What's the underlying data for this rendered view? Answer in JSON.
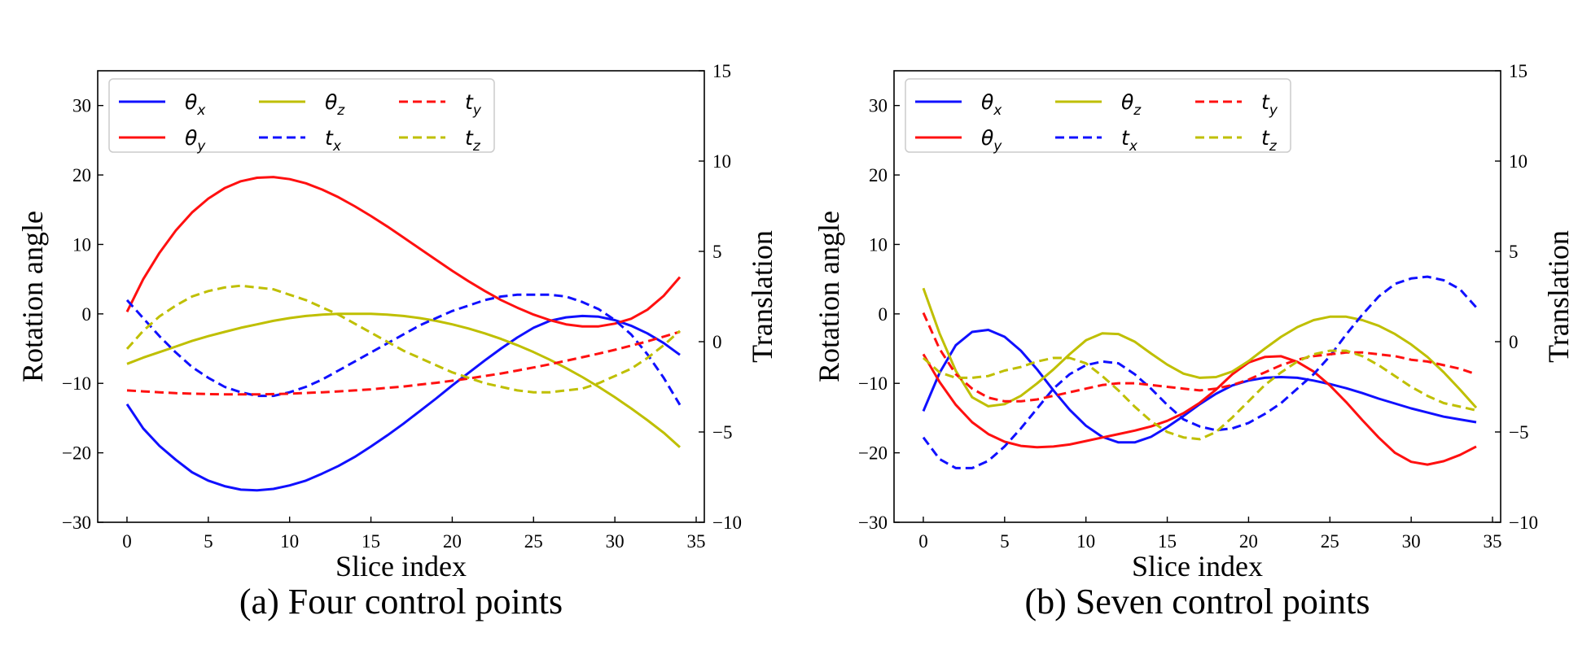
{
  "figure": {
    "series_styles": [
      {
        "key": "theta_x",
        "symbol": "θ",
        "sub": "x",
        "color": "#1010ff",
        "dashed": false
      },
      {
        "key": "theta_y",
        "symbol": "θ",
        "sub": "y",
        "color": "#ff1010",
        "dashed": false
      },
      {
        "key": "theta_z",
        "symbol": "θ",
        "sub": "z",
        "color": "#bfbf00",
        "dashed": false
      },
      {
        "key": "t_x",
        "symbol": "t",
        "sub": "x",
        "color": "#1010ff",
        "dashed": true
      },
      {
        "key": "t_y",
        "symbol": "t",
        "sub": "y",
        "color": "#ff1010",
        "dashed": true
      },
      {
        "key": "t_z",
        "symbol": "t",
        "sub": "z",
        "color": "#bfbf00",
        "dashed": true
      }
    ]
  },
  "chart_data": [
    {
      "type": "line",
      "caption": "(a) Four control points",
      "xlabel": "Slice index",
      "ylabel": "Rotation angle",
      "y2label": "Translation",
      "xlim": [
        -1.8,
        35.5
      ],
      "ylim": [
        -30,
        35
      ],
      "y2lim": [
        -10,
        15
      ],
      "xticks": [
        0,
        5,
        10,
        15,
        20,
        25,
        30,
        35
      ],
      "yticks": [
        -30,
        -20,
        -10,
        0,
        10,
        20,
        30
      ],
      "y2ticks": [
        -10,
        -5,
        0,
        5,
        10,
        15
      ],
      "yticklabels": [
        "−30",
        "−20",
        "−10",
        "0",
        "10",
        "20",
        "30"
      ],
      "y2ticklabels": [
        "−10",
        "−5",
        "0",
        "5",
        "10",
        "15"
      ],
      "legend_location": "upper-left",
      "series": [
        {
          "key": "theta_x",
          "axis": "left",
          "x": [
            0,
            1,
            2,
            3,
            4,
            5,
            6,
            7,
            8,
            9,
            10,
            11,
            12,
            13,
            14,
            15,
            16,
            17,
            18,
            19,
            20,
            21,
            22,
            23,
            24,
            25,
            26,
            27,
            28,
            29,
            30,
            31,
            32,
            33,
            34
          ],
          "values": [
            -13,
            -16.5,
            -19,
            -21,
            -22.8,
            -24,
            -24.8,
            -25.3,
            -25.4,
            -25.2,
            -24.7,
            -24,
            -23,
            -21.9,
            -20.6,
            -19.1,
            -17.5,
            -15.8,
            -14,
            -12.2,
            -10.3,
            -8.5,
            -6.7,
            -5,
            -3.4,
            -2,
            -1,
            -0.5,
            -0.3,
            -0.4,
            -0.9,
            -1.7,
            -2.8,
            -4.2,
            -5.9
          ]
        },
        {
          "key": "theta_y",
          "axis": "left",
          "x": [
            0,
            1,
            2,
            3,
            4,
            5,
            6,
            7,
            8,
            9,
            10,
            11,
            12,
            13,
            14,
            15,
            16,
            17,
            18,
            19,
            20,
            21,
            22,
            23,
            24,
            25,
            26,
            27,
            28,
            29,
            30,
            31,
            32,
            33,
            34
          ],
          "values": [
            0.3,
            5,
            8.8,
            12,
            14.6,
            16.6,
            18.1,
            19.1,
            19.6,
            19.7,
            19.4,
            18.8,
            17.9,
            16.8,
            15.5,
            14.1,
            12.6,
            11,
            9.4,
            7.8,
            6.2,
            4.7,
            3.3,
            2,
            0.9,
            -0.1,
            -0.9,
            -1.5,
            -1.8,
            -1.8,
            -1.4,
            -0.7,
            0.6,
            2.6,
            5.3
          ]
        },
        {
          "key": "theta_z",
          "axis": "left",
          "x": [
            0,
            1,
            2,
            3,
            4,
            5,
            6,
            7,
            8,
            9,
            10,
            11,
            12,
            13,
            14,
            15,
            16,
            17,
            18,
            19,
            20,
            21,
            22,
            23,
            24,
            25,
            26,
            27,
            28,
            29,
            30,
            31,
            32,
            33,
            34
          ],
          "values": [
            -7.2,
            -6.3,
            -5.5,
            -4.7,
            -3.9,
            -3.2,
            -2.6,
            -2,
            -1.5,
            -1,
            -0.6,
            -0.3,
            -0.1,
            0,
            0,
            0,
            -0.1,
            -0.3,
            -0.6,
            -1,
            -1.5,
            -2.1,
            -2.8,
            -3.6,
            -4.5,
            -5.5,
            -6.6,
            -7.8,
            -9.1,
            -10.5,
            -12,
            -13.6,
            -15.3,
            -17.1,
            -19.2
          ]
        },
        {
          "key": "t_x",
          "axis": "right",
          "x": [
            0,
            1,
            2,
            3,
            4,
            5,
            6,
            7,
            8,
            9,
            10,
            11,
            12,
            13,
            14,
            15,
            16,
            17,
            18,
            19,
            20,
            21,
            22,
            23,
            24,
            25,
            26,
            27,
            28,
            29,
            30,
            31,
            32,
            33,
            34
          ],
          "values": [
            2.3,
            1.3,
            0.3,
            -0.6,
            -1.4,
            -2,
            -2.5,
            -2.8,
            -3,
            -3,
            -2.8,
            -2.5,
            -2.1,
            -1.6,
            -1.1,
            -0.6,
            -0.1,
            0.4,
            0.9,
            1.3,
            1.7,
            2,
            2.3,
            2.5,
            2.6,
            2.6,
            2.6,
            2.5,
            2.2,
            1.8,
            1.2,
            0.4,
            -0.7,
            -2,
            -3.5
          ]
        },
        {
          "key": "t_y",
          "axis": "right",
          "x": [
            0,
            1,
            2,
            3,
            4,
            5,
            6,
            7,
            8,
            9,
            10,
            11,
            12,
            13,
            14,
            15,
            16,
            17,
            18,
            19,
            20,
            21,
            22,
            23,
            24,
            25,
            26,
            27,
            28,
            29,
            30,
            31,
            32,
            33,
            34
          ],
          "values": [
            -2.7,
            -2.75,
            -2.8,
            -2.85,
            -2.88,
            -2.9,
            -2.92,
            -2.92,
            -2.92,
            -2.9,
            -2.88,
            -2.84,
            -2.8,
            -2.75,
            -2.7,
            -2.64,
            -2.56,
            -2.48,
            -2.38,
            -2.28,
            -2.16,
            -2.04,
            -1.9,
            -1.76,
            -1.6,
            -1.43,
            -1.25,
            -1.06,
            -0.86,
            -0.66,
            -0.45,
            -0.22,
            0.02,
            0.28,
            0.55
          ]
        },
        {
          "key": "t_z",
          "axis": "right",
          "x": [
            0,
            1,
            2,
            3,
            4,
            5,
            6,
            7,
            8,
            9,
            10,
            11,
            12,
            13,
            14,
            15,
            16,
            17,
            18,
            19,
            20,
            21,
            22,
            23,
            24,
            25,
            26,
            27,
            28,
            29,
            30,
            31,
            32,
            33,
            34
          ],
          "values": [
            -0.4,
            0.6,
            1.4,
            2,
            2.5,
            2.8,
            3,
            3.1,
            3,
            2.9,
            2.6,
            2.3,
            1.9,
            1.5,
            1,
            0.5,
            0,
            -0.5,
            -0.9,
            -1.3,
            -1.7,
            -2,
            -2.3,
            -2.5,
            -2.7,
            -2.8,
            -2.8,
            -2.7,
            -2.6,
            -2.3,
            -1.9,
            -1.5,
            -0.9,
            -0.2,
            0.6
          ]
        }
      ]
    },
    {
      "type": "line",
      "caption": "(b) Seven control points",
      "xlabel": "Slice index",
      "ylabel": "Rotation angle",
      "y2label": "Translation",
      "xlim": [
        -1.8,
        35.5
      ],
      "ylim": [
        -30,
        35
      ],
      "y2lim": [
        -10,
        15
      ],
      "xticks": [
        0,
        5,
        10,
        15,
        20,
        25,
        30,
        35
      ],
      "yticks": [
        -30,
        -20,
        -10,
        0,
        10,
        20,
        30
      ],
      "y2ticks": [
        -10,
        -5,
        0,
        5,
        10,
        15
      ],
      "yticklabels": [
        "−30",
        "−20",
        "−10",
        "0",
        "10",
        "20",
        "30"
      ],
      "y2ticklabels": [
        "−10",
        "−5",
        "0",
        "5",
        "10",
        "15"
      ],
      "legend_location": "upper-left",
      "series": [
        {
          "key": "theta_x",
          "axis": "left",
          "x": [
            0,
            1,
            2,
            3,
            4,
            5,
            6,
            7,
            8,
            9,
            10,
            11,
            12,
            13,
            14,
            15,
            16,
            17,
            18,
            19,
            20,
            21,
            22,
            23,
            24,
            25,
            26,
            27,
            28,
            29,
            30,
            31,
            32,
            33,
            34
          ],
          "values": [
            -14,
            -8.5,
            -4.5,
            -2.6,
            -2.3,
            -3.3,
            -5.3,
            -8,
            -11,
            -13.8,
            -16.1,
            -17.7,
            -18.5,
            -18.5,
            -17.7,
            -16.3,
            -14.7,
            -13,
            -11.5,
            -10.3,
            -9.6,
            -9.2,
            -9.1,
            -9.2,
            -9.6,
            -10.1,
            -10.7,
            -11.4,
            -12.2,
            -12.9,
            -13.6,
            -14.2,
            -14.8,
            -15.2,
            -15.6
          ]
        },
        {
          "key": "theta_y",
          "axis": "left",
          "x": [
            0,
            1,
            2,
            3,
            4,
            5,
            6,
            7,
            8,
            9,
            10,
            11,
            12,
            13,
            14,
            15,
            16,
            17,
            18,
            19,
            20,
            21,
            22,
            23,
            24,
            25,
            26,
            27,
            28,
            29,
            30,
            31,
            32,
            33,
            34
          ],
          "values": [
            -5.8,
            -9.8,
            -13.1,
            -15.6,
            -17.3,
            -18.4,
            -19,
            -19.2,
            -19.1,
            -18.8,
            -18.3,
            -17.8,
            -17.3,
            -16.8,
            -16.2,
            -15.4,
            -14.3,
            -12.8,
            -10.9,
            -8.7,
            -7,
            -6.2,
            -6.1,
            -6.9,
            -8.3,
            -10.3,
            -12.7,
            -15.3,
            -17.8,
            -20,
            -21.3,
            -21.7,
            -21.2,
            -20.3,
            -19.1
          ]
        },
        {
          "key": "theta_z",
          "axis": "left",
          "x": [
            0,
            1,
            2,
            3,
            4,
            5,
            6,
            7,
            8,
            9,
            10,
            11,
            12,
            13,
            14,
            15,
            16,
            17,
            18,
            19,
            20,
            21,
            22,
            23,
            24,
            25,
            26,
            27,
            28,
            29,
            30,
            31,
            32,
            33,
            34
          ],
          "values": [
            3.7,
            -2.8,
            -8.2,
            -12,
            -13.3,
            -13,
            -11.8,
            -10,
            -8,
            -5.8,
            -3.8,
            -2.8,
            -2.9,
            -4,
            -5.7,
            -7.3,
            -8.6,
            -9.2,
            -9.1,
            -8.3,
            -6.8,
            -5,
            -3.3,
            -1.9,
            -0.9,
            -0.4,
            -0.4,
            -0.9,
            -1.7,
            -2.9,
            -4.4,
            -6.2,
            -8.4,
            -10.9,
            -13.5
          ]
        },
        {
          "key": "t_x",
          "axis": "right",
          "x": [
            0,
            1,
            2,
            3,
            4,
            5,
            6,
            7,
            8,
            9,
            10,
            11,
            12,
            13,
            14,
            15,
            16,
            17,
            18,
            19,
            20,
            21,
            22,
            23,
            24,
            25,
            26,
            27,
            28,
            29,
            30,
            31,
            32,
            33,
            34
          ],
          "values": [
            -5.3,
            -6.5,
            -7,
            -7,
            -6.6,
            -5.8,
            -4.8,
            -3.7,
            -2.6,
            -1.8,
            -1.3,
            -1.1,
            -1.2,
            -1.8,
            -2.6,
            -3.5,
            -4.3,
            -4.7,
            -4.9,
            -4.8,
            -4.5,
            -4,
            -3.4,
            -2.6,
            -1.8,
            -0.8,
            0.4,
            1.5,
            2.5,
            3.2,
            3.5,
            3.6,
            3.4,
            2.9,
            1.9
          ]
        },
        {
          "key": "t_y",
          "axis": "right",
          "x": [
            0,
            1,
            2,
            3,
            4,
            5,
            6,
            7,
            8,
            9,
            10,
            11,
            12,
            13,
            14,
            15,
            16,
            17,
            18,
            19,
            20,
            21,
            22,
            23,
            24,
            25,
            26,
            27,
            28,
            29,
            30,
            31,
            32,
            33,
            34
          ],
          "values": [
            1.6,
            -0.4,
            -1.8,
            -2.6,
            -3.1,
            -3.3,
            -3.3,
            -3.2,
            -3,
            -2.8,
            -2.6,
            -2.4,
            -2.3,
            -2.3,
            -2.4,
            -2.5,
            -2.6,
            -2.7,
            -2.6,
            -2.4,
            -2.1,
            -1.7,
            -1.3,
            -1,
            -0.8,
            -0.7,
            -0.6,
            -0.6,
            -0.7,
            -0.8,
            -1,
            -1.1,
            -1.3,
            -1.5,
            -1.8
          ]
        },
        {
          "key": "t_z",
          "axis": "right",
          "x": [
            0,
            1,
            2,
            3,
            4,
            5,
            6,
            7,
            8,
            9,
            10,
            11,
            12,
            13,
            14,
            15,
            16,
            17,
            18,
            19,
            20,
            21,
            22,
            23,
            24,
            25,
            26,
            27,
            28,
            29,
            30,
            31,
            32,
            33,
            34
          ],
          "values": [
            -0.9,
            -1.7,
            -2,
            -2,
            -1.9,
            -1.6,
            -1.4,
            -1.1,
            -0.9,
            -0.9,
            -1.2,
            -1.9,
            -2.7,
            -3.6,
            -4.4,
            -5,
            -5.3,
            -5.4,
            -5,
            -4.2,
            -3.3,
            -2.4,
            -1.7,
            -1.1,
            -0.7,
            -0.5,
            -0.5,
            -0.8,
            -1.3,
            -1.9,
            -2.5,
            -3,
            -3.4,
            -3.6,
            -3.8
          ]
        }
      ]
    }
  ]
}
